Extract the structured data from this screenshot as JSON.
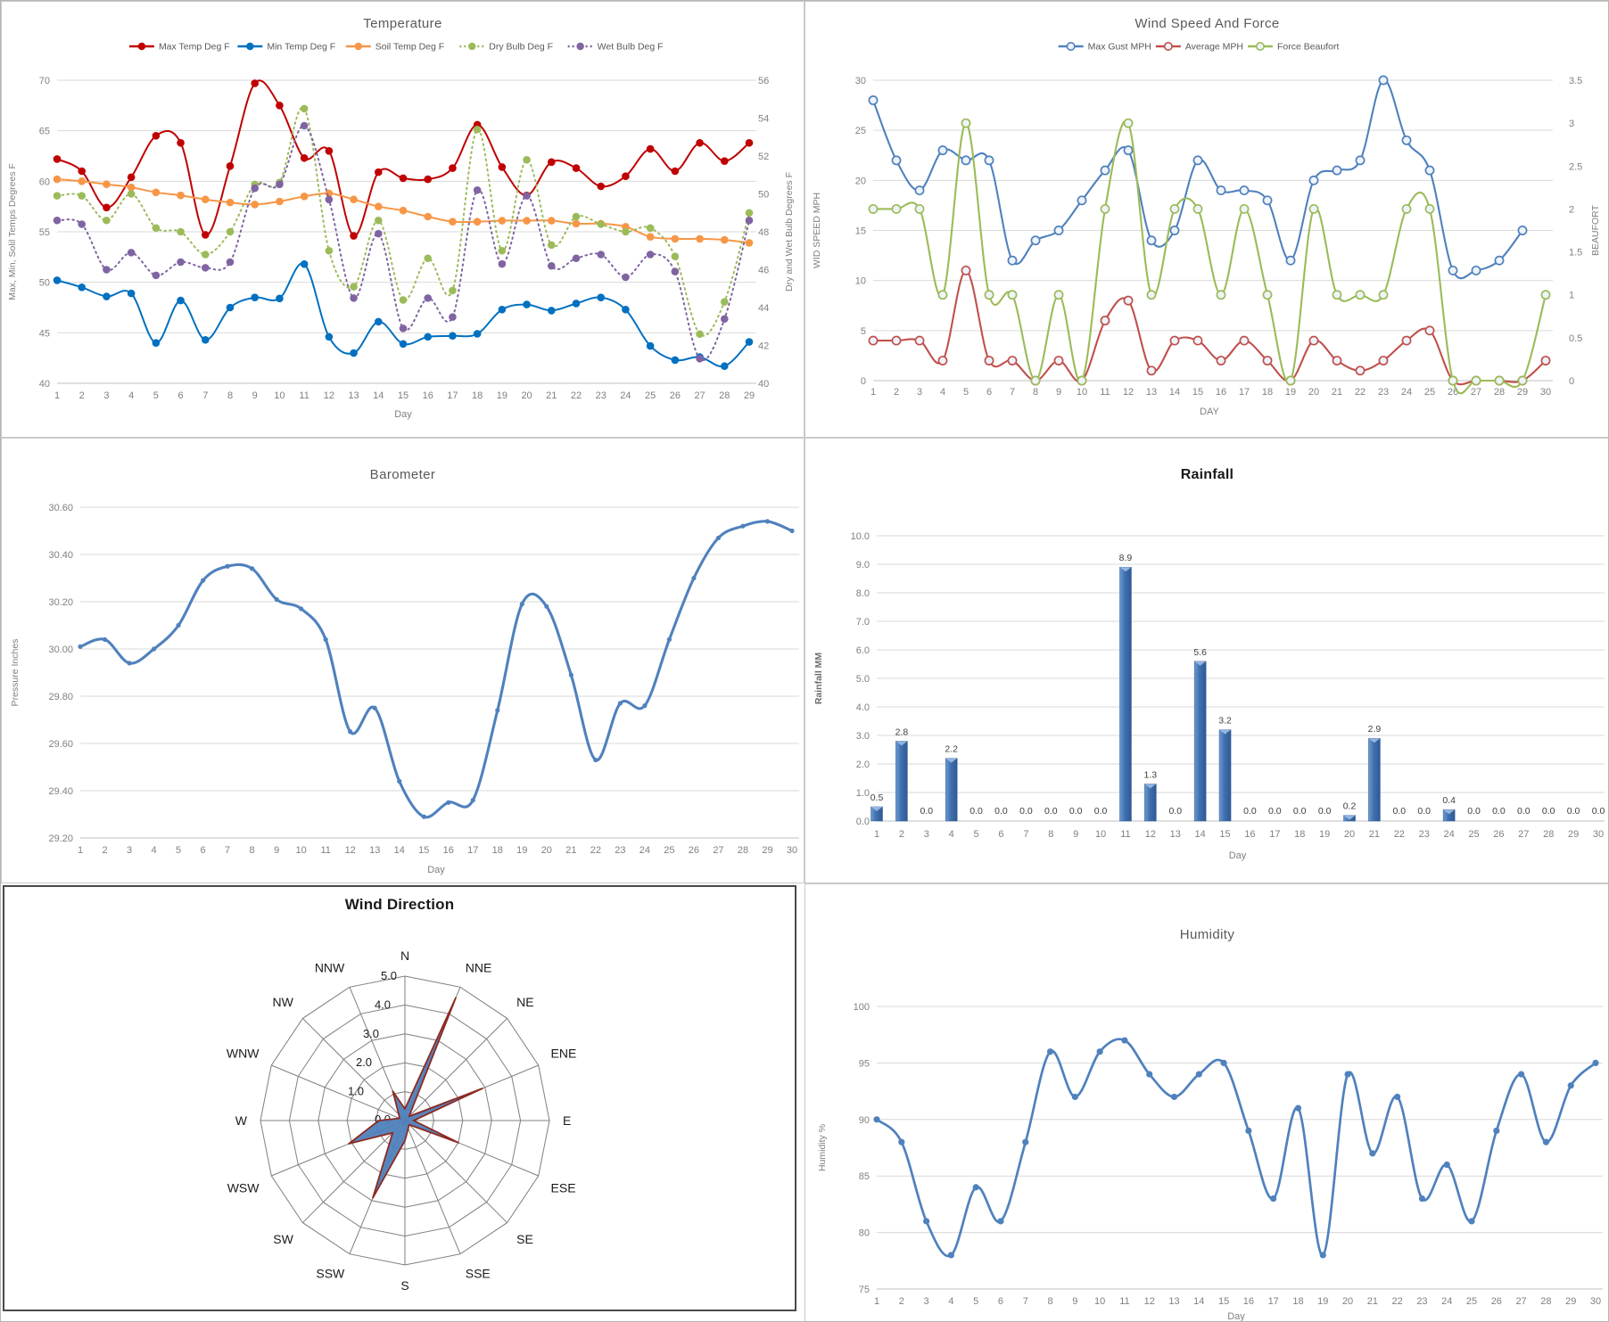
{
  "page": {
    "background": "#ffffff"
  },
  "palette": {
    "grid": "#d9d9d9",
    "axis_line": "#bfbfbf",
    "tick_text": "#808080",
    "title_text": "#595959",
    "office_blue": "#4f81bd",
    "office_red": "#c0504d",
    "office_green": "#9bbb59",
    "office_purple": "#8064a2",
    "office_orange": "#f79646"
  },
  "chart_data": [
    {
      "id": "temperature",
      "type": "line",
      "title": "Temperature",
      "xlabel": "Day",
      "ylabel_left": "Max, Min, Solil Temps Degrees F",
      "ylabel_right": "Dry and Wet Bulb Degrees F",
      "x": [
        1,
        2,
        3,
        4,
        5,
        6,
        7,
        8,
        9,
        10,
        11,
        12,
        13,
        14,
        15,
        16,
        17,
        18,
        19,
        20,
        21,
        22,
        23,
        24,
        25,
        26,
        27,
        28,
        29
      ],
      "ylim": [
        40,
        70
      ],
      "yticks": [
        "40",
        "45",
        "50",
        "55",
        "60",
        "65",
        "70"
      ],
      "ylim_right": [
        40,
        56
      ],
      "yticks_right": [
        "40",
        "42",
        "44",
        "46",
        "48",
        "50",
        "52",
        "54",
        "56"
      ],
      "grid": true,
      "legend_position": "top",
      "series": [
        {
          "name": "Max Temp Deg F",
          "color": "#c00000",
          "axis": "left",
          "dash": "solid",
          "marker": "filled",
          "values": [
            62.2,
            61.0,
            57.4,
            60.4,
            64.5,
            63.8,
            54.7,
            61.5,
            69.7,
            67.5,
            62.3,
            63.0,
            54.6,
            60.9,
            60.3,
            60.2,
            61.3,
            65.6,
            61.4,
            58.6,
            61.9,
            61.3,
            59.5,
            60.5,
            63.2,
            61.0,
            63.8,
            62.0,
            63.8
          ]
        },
        {
          "name": "Min Temp Deg F",
          "color": "#0070c0",
          "axis": "left",
          "dash": "solid",
          "marker": "filled",
          "values": [
            50.2,
            49.5,
            48.6,
            48.9,
            44.0,
            48.2,
            44.3,
            47.5,
            48.5,
            48.4,
            51.8,
            44.6,
            43.0,
            46.1,
            43.9,
            44.6,
            44.7,
            44.9,
            47.3,
            47.8,
            47.2,
            47.9,
            48.5,
            47.3,
            43.7,
            42.3,
            42.6,
            41.7,
            44.1
          ]
        },
        {
          "name": "Soil Temp Deg F",
          "color": "#f79646",
          "axis": "left",
          "dash": "solid",
          "marker": "filled",
          "values": [
            60.2,
            60.0,
            59.7,
            59.4,
            58.9,
            58.6,
            58.2,
            57.9,
            57.7,
            58.0,
            58.5,
            58.8,
            58.2,
            57.5,
            57.1,
            56.5,
            56.0,
            56.0,
            56.1,
            56.1,
            56.1,
            55.8,
            55.8,
            55.5,
            54.5,
            54.3,
            54.3,
            54.2,
            53.9
          ]
        },
        {
          "name": "Dry Bulb Deg F",
          "color": "#9bbb59",
          "axis": "right",
          "dash": "dot",
          "marker": "filled",
          "values": [
            49.9,
            49.9,
            48.6,
            50.0,
            48.2,
            48.0,
            46.8,
            48.0,
            50.5,
            50.6,
            54.5,
            47.0,
            45.1,
            48.6,
            44.4,
            46.6,
            44.9,
            53.4,
            47.0,
            51.8,
            47.3,
            48.8,
            48.4,
            48.0,
            48.2,
            46.7,
            42.6,
            44.3,
            49.0
          ]
        },
        {
          "name": "Wet Bulb Deg F",
          "color": "#8064a2",
          "axis": "right",
          "dash": "dot",
          "marker": "filled",
          "values": [
            48.6,
            48.4,
            46.0,
            46.9,
            45.7,
            46.4,
            46.1,
            46.4,
            50.3,
            50.5,
            53.6,
            49.7,
            44.5,
            47.9,
            42.9,
            44.5,
            43.5,
            50.2,
            46.3,
            49.9,
            46.2,
            46.6,
            46.8,
            45.6,
            46.8,
            45.9,
            41.3,
            43.4,
            48.6
          ]
        }
      ]
    },
    {
      "id": "wind",
      "type": "line",
      "title": "Wind Speed And Force",
      "xlabel": "DAY",
      "ylabel_left": "WID SPEED MPH",
      "ylabel_right": "BEAUFORT",
      "x": [
        1,
        2,
        3,
        4,
        5,
        6,
        7,
        8,
        9,
        10,
        11,
        12,
        13,
        14,
        15,
        16,
        17,
        18,
        19,
        20,
        21,
        22,
        23,
        24,
        25,
        26,
        27,
        28,
        29,
        30
      ],
      "ylim": [
        0,
        30
      ],
      "yticks": [
        "0",
        "5",
        "10",
        "15",
        "20",
        "25",
        "30"
      ],
      "ylim_right": [
        0,
        3.5
      ],
      "yticks_right": [
        "0",
        "0.5",
        "1",
        "1.5",
        "2",
        "2.5",
        "3",
        "3.5"
      ],
      "grid": true,
      "legend_position": "top",
      "series": [
        {
          "name": "Max Gust MPH",
          "color": "#4f81bd",
          "axis": "left",
          "dash": "solid",
          "marker": "open",
          "values": [
            28,
            22,
            19,
            23,
            22,
            22,
            12,
            14,
            15,
            18,
            21,
            23,
            14,
            15,
            22,
            19,
            19,
            18,
            12,
            20,
            21,
            22,
            30,
            24,
            21,
            11,
            11,
            12,
            15,
            null
          ]
        },
        {
          "name": "Average MPH",
          "color": "#c0504d",
          "axis": "left",
          "dash": "solid",
          "marker": "open",
          "values": [
            4,
            4,
            4,
            2,
            11,
            2,
            2,
            0,
            2,
            0,
            6,
            8,
            1,
            4,
            4,
            2,
            4,
            2,
            0,
            4,
            2,
            1,
            2,
            4,
            5,
            0,
            0,
            0,
            0,
            2
          ]
        },
        {
          "name": "Force Beaufort",
          "color": "#9bbb59",
          "axis": "right",
          "dash": "solid",
          "marker": "open",
          "values": [
            2,
            2,
            2,
            1,
            3,
            1,
            1,
            0,
            1,
            0,
            2,
            3,
            1,
            2,
            2,
            1,
            2,
            1,
            0,
            2,
            1,
            1,
            1,
            2,
            2,
            0,
            0,
            0,
            0,
            1
          ]
        }
      ]
    },
    {
      "id": "barometer",
      "type": "line",
      "title": "Barometer",
      "xlabel": "Day",
      "ylabel_left": "Pressure Inches",
      "x": [
        1,
        2,
        3,
        4,
        5,
        6,
        7,
        8,
        9,
        10,
        11,
        12,
        13,
        14,
        15,
        16,
        17,
        18,
        19,
        20,
        21,
        22,
        23,
        24,
        25,
        26,
        27,
        28,
        29,
        30
      ],
      "ylim": [
        29.2,
        30.6
      ],
      "yticks": [
        "29.20",
        "29.40",
        "29.60",
        "29.80",
        "30.00",
        "30.20",
        "30.40",
        "30.60"
      ],
      "grid": true,
      "legend_position": "none",
      "series": [
        {
          "name": "Pressure",
          "color": "#4f81bd",
          "axis": "left",
          "dash": "solid",
          "marker": "small",
          "values": [
            30.01,
            30.04,
            29.94,
            30.0,
            30.1,
            30.29,
            30.35,
            30.34,
            30.21,
            30.17,
            30.04,
            29.65,
            29.75,
            29.44,
            29.29,
            29.35,
            29.36,
            29.74,
            30.19,
            30.18,
            29.89,
            29.53,
            29.77,
            29.76,
            30.04,
            30.3,
            30.47,
            30.52,
            30.54,
            30.5
          ]
        }
      ]
    },
    {
      "id": "rainfall",
      "type": "bar",
      "title": "Rainfall",
      "xlabel": "Day",
      "ylabel_left": "Rainfall MM",
      "categories": [
        1,
        2,
        3,
        4,
        5,
        6,
        7,
        8,
        9,
        10,
        11,
        12,
        13,
        14,
        15,
        16,
        17,
        18,
        19,
        20,
        21,
        22,
        23,
        24,
        25,
        26,
        27,
        28,
        29,
        30
      ],
      "values": [
        0.5,
        2.8,
        0.0,
        2.2,
        0.0,
        0.0,
        0.0,
        0.0,
        0.0,
        0.0,
        8.9,
        1.3,
        0.0,
        5.6,
        3.2,
        0.0,
        0.0,
        0.0,
        0.0,
        0.2,
        2.9,
        0.0,
        0.0,
        0.4,
        0.0,
        0.0,
        0.0,
        0.0,
        0.0,
        0.0
      ],
      "bar_color": "#4f81bd",
      "bar_edge": "#2e5a94",
      "ylim": [
        0,
        10
      ],
      "yticks": [
        "0.0",
        "1.0",
        "2.0",
        "3.0",
        "4.0",
        "5.0",
        "6.0",
        "7.0",
        "8.0",
        "9.0",
        "10.0"
      ],
      "grid": true,
      "show_value_labels": true
    },
    {
      "id": "wind-direction",
      "type": "radar",
      "title": "Wind Direction",
      "categories": [
        "N",
        "NNE",
        "NE",
        "ENE",
        "E",
        "ESE",
        "SE",
        "SSE",
        "S",
        "SSW",
        "SW",
        "WSW",
        "W",
        "WNW",
        "NW",
        "NNW"
      ],
      "values": [
        0.4,
        4.6,
        0.2,
        2.9,
        0.3,
        2.0,
        0.2,
        0.3,
        0.7,
        2.9,
        0.6,
        2.1,
        0.9,
        0.2,
        0.3,
        1.1
      ],
      "rings": [
        "0.0",
        "1.0",
        "2.0",
        "3.0",
        "4.0",
        "5.0"
      ],
      "rmax": 5,
      "fill_color": "#4f81bd",
      "stroke_color": "#8c2a21",
      "grid_color": "#7f7f7f"
    },
    {
      "id": "humidity",
      "type": "line",
      "title": "Humidity",
      "xlabel": "Day",
      "ylabel_left": "Humidity %",
      "x": [
        1,
        2,
        3,
        4,
        5,
        6,
        7,
        8,
        9,
        10,
        11,
        12,
        13,
        14,
        15,
        16,
        17,
        18,
        19,
        20,
        21,
        22,
        23,
        24,
        25,
        26,
        27,
        28,
        29,
        30
      ],
      "ylim": [
        75,
        100
      ],
      "yticks": [
        "75",
        "80",
        "85",
        "90",
        "95",
        "100"
      ],
      "grid": true,
      "legend_position": "none",
      "series": [
        {
          "name": "Humidity %",
          "color": "#4f81bd",
          "axis": "left",
          "dash": "solid",
          "marker": "filled",
          "values": [
            90,
            88,
            81,
            78,
            84,
            81,
            88,
            96,
            92,
            96,
            97,
            94,
            92,
            94,
            95,
            89,
            83,
            91,
            78,
            94,
            87,
            92,
            83,
            86,
            81,
            89,
            94,
            88,
            93,
            95
          ]
        }
      ]
    }
  ]
}
